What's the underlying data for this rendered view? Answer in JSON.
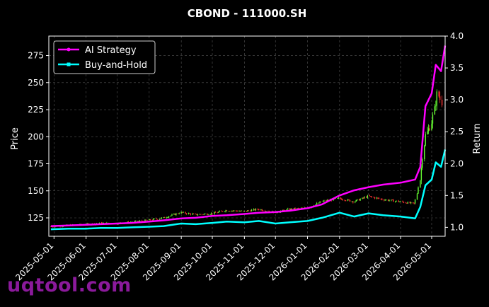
{
  "chart_data": {
    "type": "line",
    "title": "CBOND - 111000.SH",
    "xlabel": "",
    "ylabel": "Price",
    "y2label": "Return",
    "x_range": [
      "2025-04-26",
      "2026-05-14"
    ],
    "ylim": [
      108,
      293
    ],
    "y2lim": [
      0.86,
      4.0
    ],
    "y_ticks": [
      125,
      150,
      175,
      200,
      225,
      250,
      275
    ],
    "y2_ticks": [
      "1.0",
      "1.5",
      "2.0",
      "2.5",
      "3.0",
      "3.5",
      "4.0"
    ],
    "x_ticks": [
      "2025-05-01",
      "2025-06-01",
      "2025-07-01",
      "2025-08-01",
      "2025-09-01",
      "2025-10-01",
      "2025-11-01",
      "2025-12-01",
      "2026-01-01",
      "2026-02-01",
      "2026-03-01",
      "2026-04-01",
      "2026-05-01"
    ],
    "grid": true,
    "legend_position": "top-left",
    "price_series": {
      "type": "candlestick",
      "up_color": "#66ff33",
      "down_color": "#ff3333",
      "close": [
        [
          "2025-04-28",
          117
        ],
        [
          "2025-05-15",
          118
        ],
        [
          "2025-06-01",
          119
        ],
        [
          "2025-06-15",
          120
        ],
        [
          "2025-07-01",
          120
        ],
        [
          "2025-07-15",
          121
        ],
        [
          "2025-08-01",
          123
        ],
        [
          "2025-08-15",
          125
        ],
        [
          "2025-09-01",
          130
        ],
        [
          "2025-09-15",
          128
        ],
        [
          "2025-10-01",
          129
        ],
        [
          "2025-10-15",
          132
        ],
        [
          "2025-11-01",
          131
        ],
        [
          "2025-11-15",
          133
        ],
        [
          "2025-12-01",
          130
        ],
        [
          "2025-12-15",
          133
        ],
        [
          "2026-01-01",
          134
        ],
        [
          "2026-01-15",
          140
        ],
        [
          "2026-02-01",
          143
        ],
        [
          "2026-02-15",
          140
        ],
        [
          "2026-03-01",
          145
        ],
        [
          "2026-03-15",
          142
        ],
        [
          "2026-04-01",
          140
        ],
        [
          "2026-04-15",
          138
        ],
        [
          "2026-04-20",
          160
        ],
        [
          "2026-04-25",
          200
        ],
        [
          "2026-04-30",
          210
        ],
        [
          "2026-05-03",
          220
        ],
        [
          "2026-05-07",
          240
        ],
        [
          "2026-05-11",
          232
        ]
      ]
    },
    "series": [
      {
        "name": "AI Strategy",
        "axis": "return",
        "color": "#ff00ff",
        "marker": "circle",
        "points": [
          [
            "2025-04-28",
            1.02
          ],
          [
            "2025-05-15",
            1.03
          ],
          [
            "2025-06-01",
            1.04
          ],
          [
            "2025-06-15",
            1.05
          ],
          [
            "2025-07-01",
            1.06
          ],
          [
            "2025-07-15",
            1.07
          ],
          [
            "2025-08-01",
            1.09
          ],
          [
            "2025-08-15",
            1.11
          ],
          [
            "2025-09-01",
            1.14
          ],
          [
            "2025-09-15",
            1.15
          ],
          [
            "2025-10-01",
            1.18
          ],
          [
            "2025-10-15",
            1.19
          ],
          [
            "2025-11-01",
            1.21
          ],
          [
            "2025-11-15",
            1.23
          ],
          [
            "2025-12-01",
            1.24
          ],
          [
            "2025-12-15",
            1.26
          ],
          [
            "2026-01-01",
            1.3
          ],
          [
            "2026-01-15",
            1.36
          ],
          [
            "2026-02-01",
            1.5
          ],
          [
            "2026-02-15",
            1.58
          ],
          [
            "2026-03-01",
            1.63
          ],
          [
            "2026-03-15",
            1.67
          ],
          [
            "2026-04-01",
            1.7
          ],
          [
            "2026-04-15",
            1.75
          ],
          [
            "2026-04-20",
            1.95
          ],
          [
            "2026-04-25",
            2.9
          ],
          [
            "2026-05-01",
            3.1
          ],
          [
            "2026-05-05",
            3.55
          ],
          [
            "2026-05-10",
            3.45
          ],
          [
            "2026-05-14",
            3.85
          ]
        ]
      },
      {
        "name": "Buy-and-Hold",
        "axis": "return",
        "color": "#00ffff",
        "marker": "square",
        "points": [
          [
            "2025-04-28",
            0.97
          ],
          [
            "2025-05-15",
            0.98
          ],
          [
            "2025-06-01",
            0.98
          ],
          [
            "2025-06-15",
            0.99
          ],
          [
            "2025-07-01",
            0.99
          ],
          [
            "2025-07-15",
            1.0
          ],
          [
            "2025-08-01",
            1.01
          ],
          [
            "2025-08-15",
            1.02
          ],
          [
            "2025-09-01",
            1.06
          ],
          [
            "2025-09-15",
            1.05
          ],
          [
            "2025-10-01",
            1.07
          ],
          [
            "2025-10-15",
            1.09
          ],
          [
            "2025-11-01",
            1.08
          ],
          [
            "2025-11-15",
            1.1
          ],
          [
            "2025-12-01",
            1.06
          ],
          [
            "2025-12-15",
            1.08
          ],
          [
            "2026-01-01",
            1.1
          ],
          [
            "2026-01-15",
            1.15
          ],
          [
            "2026-02-01",
            1.23
          ],
          [
            "2026-02-15",
            1.17
          ],
          [
            "2026-03-01",
            1.22
          ],
          [
            "2026-03-15",
            1.19
          ],
          [
            "2026-04-01",
            1.17
          ],
          [
            "2026-04-15",
            1.14
          ],
          [
            "2026-04-20",
            1.32
          ],
          [
            "2026-04-25",
            1.66
          ],
          [
            "2026-05-01",
            1.75
          ],
          [
            "2026-05-05",
            2.02
          ],
          [
            "2026-05-10",
            1.95
          ],
          [
            "2026-05-14",
            2.22
          ]
        ]
      }
    ]
  },
  "watermark": "uqtool.com"
}
